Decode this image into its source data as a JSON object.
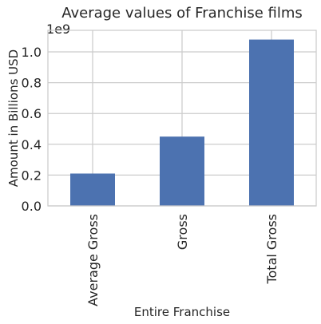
{
  "chart_data": {
    "type": "bar",
    "title": "Average values of Franchise films",
    "xlabel": "Entire Franchise",
    "ylabel": "Amount in Billions USD",
    "scale_label": "1e9",
    "categories": [
      "Average Gross",
      "Gross",
      "Total Gross"
    ],
    "values": [
      210000000,
      450000000,
      1080000000
    ],
    "ylim": [
      0,
      1140000000
    ],
    "yticks": [
      0,
      200000000,
      400000000,
      600000000,
      800000000,
      1000000000
    ],
    "ytick_labels": [
      "0.0",
      "0.2",
      "0.4",
      "0.6",
      "0.8",
      "1.0"
    ],
    "grid": true,
    "bar_color": "#4c72b0",
    "grid_color": "#cccccc"
  }
}
